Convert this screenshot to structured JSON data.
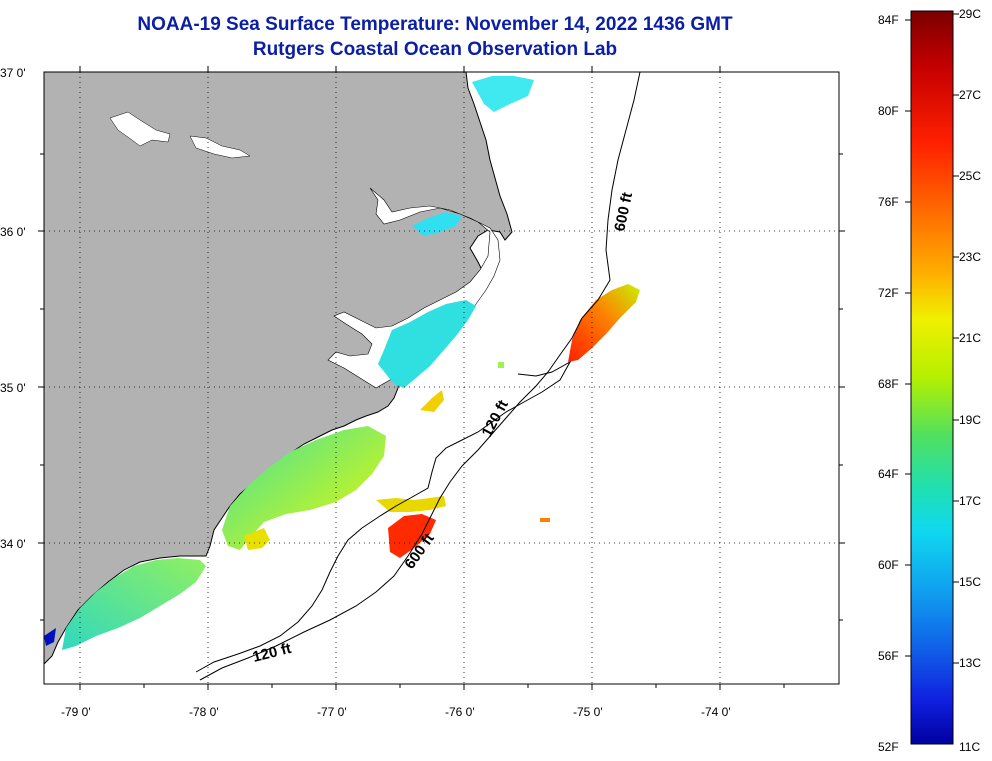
{
  "title": {
    "line1": "NOAA-19 Sea Surface Temperature:  November 14, 2022 1436 GMT",
    "line2": "Rutgers Coastal Ocean Observation Lab"
  },
  "map": {
    "lat_labels": [
      "37 0'",
      "36 0'",
      "35 0'",
      "34 0'"
    ],
    "lon_labels": [
      "-79 0'",
      "-78 0'",
      "-77 0'",
      "-76 0'",
      "-75 0'",
      "-74 0'"
    ],
    "contours": {
      "c600_north": "600 ft",
      "c120_mid": "120 ft",
      "c600_south": "600 ft",
      "c120_south": "120 ft"
    },
    "colors": {
      "land": "#b2b2b2",
      "ocean": "#ffffff",
      "grid": "#000000"
    }
  },
  "colorbar": {
    "fahrenheit": [
      "84F",
      "80F",
      "76F",
      "72F",
      "68F",
      "64F",
      "60F",
      "56F",
      "52F"
    ],
    "celsius": [
      "29C",
      "27C",
      "25C",
      "23C",
      "21C",
      "19C",
      "17C",
      "15C",
      "13C",
      "11C"
    ],
    "gradient": [
      "#7a0000",
      "#c80000",
      "#ff2000",
      "#ff7000",
      "#ffb000",
      "#f0f000",
      "#b4f000",
      "#50e060",
      "#20e0b0",
      "#10d8f0",
      "#10a0f0",
      "#1060e8",
      "#1020e0",
      "#0000a0"
    ]
  }
}
